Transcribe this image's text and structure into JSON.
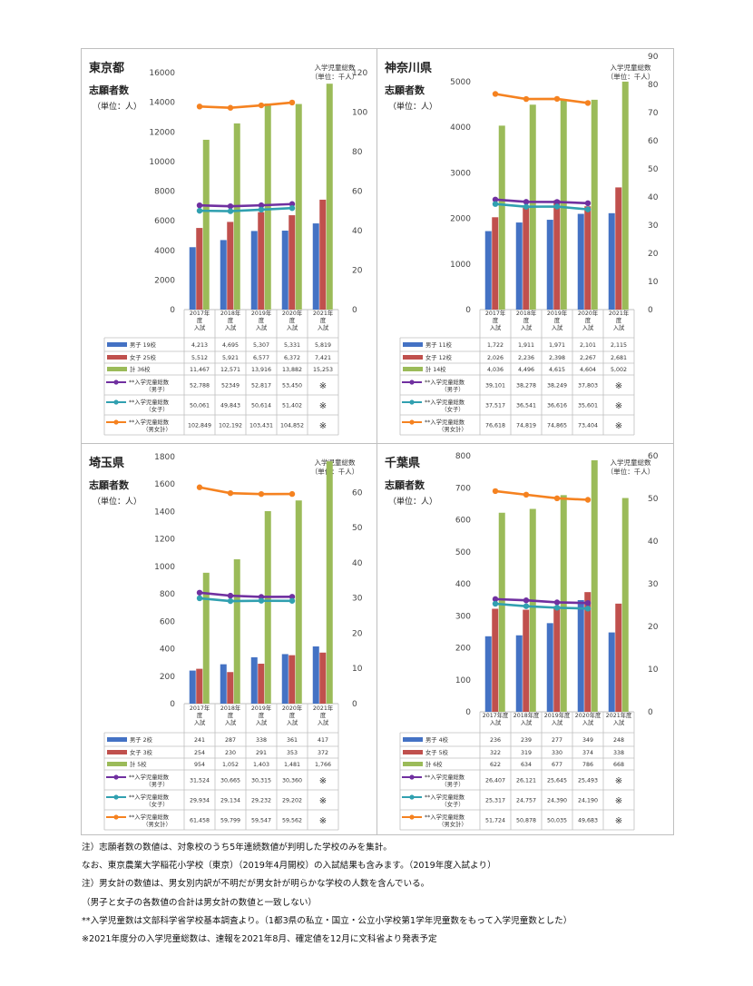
{
  "charts": [
    {
      "id": "tokyo",
      "title": "東京都",
      "subtitle": "志願者数",
      "unit": "（単位：人）",
      "right_title": "入学児童総数",
      "right_unit": "（単位：千人）",
      "left_ticks": [
        "16000",
        "14000",
        "12000",
        "10000",
        "8000",
        "6000",
        "4000",
        "2000",
        "0"
      ],
      "right_ticks": [
        "120",
        "100",
        "80",
        "60",
        "40",
        "20",
        "0"
      ],
      "categories": [
        [
          "2017年",
          "度",
          "入試"
        ],
        [
          "2018年",
          "度",
          "入試"
        ],
        [
          "2019年",
          "度",
          "入試"
        ],
        [
          "2020年",
          "度",
          "入試"
        ],
        [
          "2021年",
          "度",
          "入試"
        ]
      ],
      "table_rows": [
        {
          "label": [
            "男子 19校"
          ],
          "cells": [
            "4,213",
            "4,695",
            "5,307",
            "5,331",
            "5,819"
          ]
        },
        {
          "label": [
            "女子 25校"
          ],
          "cells": [
            "5,512",
            "5,921",
            "6,577",
            "6,372",
            "7,421"
          ]
        },
        {
          "label": [
            "計 36校"
          ],
          "cells": [
            "11,467",
            "12,571",
            "13,916",
            "13,882",
            "15,253"
          ]
        },
        {
          "label": [
            "**入学児童総数",
            "（男子）"
          ],
          "cells": [
            "52,788",
            "52349",
            "52,817",
            "53,450",
            "※"
          ]
        },
        {
          "label": [
            "**入学児童総数",
            "（女子）"
          ],
          "cells": [
            "50,061",
            "49,843",
            "50,614",
            "51,402",
            "※"
          ]
        },
        {
          "label": [
            "**入学児童総数",
            "（男女計）"
          ],
          "cells": [
            "102,849",
            "102,192",
            "103,431",
            "104,852",
            "※"
          ]
        }
      ],
      "chart_data": {
        "type": "bar",
        "categories": [
          "2017年度入試",
          "2018年度入試",
          "2019年度入試",
          "2020年度入試",
          "2021年度入試"
        ],
        "ylim": [
          0,
          16000
        ],
        "y2lim": [
          0,
          120
        ],
        "series": [
          {
            "name": "男子 19校",
            "axis": "left",
            "values": [
              4213,
              4695,
              5307,
              5331,
              5819
            ],
            "color": "#4472c4"
          },
          {
            "name": "女子 25校",
            "axis": "left",
            "values": [
              5512,
              5921,
              6577,
              6372,
              7421
            ],
            "color": "#c0504d"
          },
          {
            "name": "計 36校",
            "axis": "left",
            "values": [
              11467,
              12571,
              13916,
              13882,
              15253
            ],
            "color": "#9bbb59"
          },
          {
            "name": "**入学児童総数（男子）",
            "axis": "right",
            "type": "line",
            "values": [
              52.788,
              52.349,
              52.817,
              53.45,
              null
            ],
            "color": "#7030a0"
          },
          {
            "name": "**入学児童総数（女子）",
            "axis": "right",
            "type": "line",
            "values": [
              50.061,
              49.843,
              50.614,
              51.402,
              null
            ],
            "color": "#31a0b0"
          },
          {
            "name": "**入学児童総数（男女計）",
            "axis": "right",
            "type": "line",
            "values": [
              102.849,
              102.192,
              103.431,
              104.852,
              null
            ],
            "color": "#f58220"
          }
        ]
      }
    },
    {
      "id": "kanagawa",
      "title": "神奈川県",
      "subtitle": "志願者数",
      "unit": "（単位：人）",
      "right_title": "入学児童総数",
      "right_unit": "（単位：千人）",
      "left_ticks": [
        "5000",
        "4000",
        "3000",
        "2000",
        "1000",
        "0"
      ],
      "right_ticks": [
        "90",
        "80",
        "70",
        "60",
        "50",
        "40",
        "30",
        "20",
        "10",
        "0"
      ],
      "categories": [
        [
          "2017年",
          "度",
          "入試"
        ],
        [
          "2018年",
          "度",
          "入試"
        ],
        [
          "2019年",
          "度",
          "入試"
        ],
        [
          "2020年",
          "度",
          "入試"
        ],
        [
          "2021年",
          "度",
          "入試"
        ]
      ],
      "table_rows": [
        {
          "label": [
            "男子 11校"
          ],
          "cells": [
            "1,722",
            "1,911",
            "1,971",
            "2,101",
            "2,115"
          ]
        },
        {
          "label": [
            "女子 12校"
          ],
          "cells": [
            "2,026",
            "2,236",
            "2,398",
            "2,267",
            "2,681"
          ]
        },
        {
          "label": [
            "計 14校"
          ],
          "cells": [
            "4,036",
            "4,496",
            "4,615",
            "4,604",
            "5,002"
          ]
        },
        {
          "label": [
            "**入学児童総数",
            "（男子）"
          ],
          "cells": [
            "39,101",
            "38,278",
            "38,249",
            "37,803",
            "※"
          ]
        },
        {
          "label": [
            "**入学児童総数",
            "（女子）"
          ],
          "cells": [
            "37,517",
            "36,541",
            "36,616",
            "35,601",
            "※"
          ]
        },
        {
          "label": [
            "**入学児童総数",
            "（男女計）"
          ],
          "cells": [
            "76,618",
            "74,819",
            "74,865",
            "73,404",
            "※"
          ]
        }
      ],
      "chart_data": {
        "type": "bar",
        "categories": [
          "2017年度入試",
          "2018年度入試",
          "2019年度入試",
          "2020年度入試",
          "2021年度入試"
        ],
        "ylim": [
          0,
          5000
        ],
        "y2lim": [
          0,
          90
        ],
        "series": [
          {
            "name": "男子 11校",
            "axis": "left",
            "values": [
              1722,
              1911,
              1971,
              2101,
              2115
            ],
            "color": "#4472c4"
          },
          {
            "name": "女子 12校",
            "axis": "left",
            "values": [
              2026,
              2236,
              2398,
              2267,
              2681
            ],
            "color": "#c0504d"
          },
          {
            "name": "計 14校",
            "axis": "left",
            "values": [
              4036,
              4496,
              4615,
              4604,
              5002
            ],
            "color": "#9bbb59"
          },
          {
            "name": "**入学児童総数（男子）",
            "axis": "right",
            "type": "line",
            "values": [
              39.101,
              38.278,
              38.249,
              37.803,
              null
            ],
            "color": "#7030a0"
          },
          {
            "name": "**入学児童総数（女子）",
            "axis": "right",
            "type": "line",
            "values": [
              37.517,
              36.541,
              36.616,
              35.601,
              null
            ],
            "color": "#31a0b0"
          },
          {
            "name": "**入学児童総数（男女計）",
            "axis": "right",
            "type": "line",
            "values": [
              76.618,
              74.819,
              74.865,
              73.404,
              null
            ],
            "color": "#f58220"
          }
        ]
      }
    },
    {
      "id": "saitama",
      "title": "埼玉県",
      "subtitle": "志願者数",
      "unit": "（単位：人）",
      "right_title": "入学児童総数",
      "right_unit": "（単位：千人）",
      "left_ticks": [
        "1800",
        "1600",
        "1400",
        "1200",
        "1000",
        "800",
        "600",
        "400",
        "200",
        "0"
      ],
      "right_ticks": [
        "60",
        "50",
        "40",
        "30",
        "20",
        "10",
        "0"
      ],
      "categories": [
        [
          "2017年",
          "度",
          "入試"
        ],
        [
          "2018年",
          "度",
          "入試"
        ],
        [
          "2019年",
          "度",
          "入試"
        ],
        [
          "2020年",
          "度",
          "入試"
        ],
        [
          "2021年",
          "度",
          "入試"
        ]
      ],
      "table_rows": [
        {
          "label": [
            "男子 2校"
          ],
          "cells": [
            "241",
            "287",
            "338",
            "361",
            "417"
          ]
        },
        {
          "label": [
            "女子 3校"
          ],
          "cells": [
            "254",
            "230",
            "291",
            "353",
            "372"
          ]
        },
        {
          "label": [
            "計 5校"
          ],
          "cells": [
            "954",
            "1,052",
            "1,403",
            "1,481",
            "1,766"
          ]
        },
        {
          "label": [
            "**入学児童総数",
            "（男子）"
          ],
          "cells": [
            "31,524",
            "30,665",
            "30,315",
            "30,360",
            "※"
          ]
        },
        {
          "label": [
            "**入学児童総数",
            "（女子）"
          ],
          "cells": [
            "29,934",
            "29,134",
            "29,232",
            "29,202",
            "※"
          ]
        },
        {
          "label": [
            "**入学児童総数",
            "（男女計）"
          ],
          "cells": [
            "61,458",
            "59,799",
            "59,547",
            "59,562",
            "※"
          ]
        }
      ],
      "chart_data": {
        "type": "bar",
        "categories": [
          "2017年度入試",
          "2018年度入試",
          "2019年度入試",
          "2020年度入試",
          "2021年度入試"
        ],
        "ylim": [
          0,
          1800
        ],
        "y2lim": [
          0,
          65
        ],
        "series": [
          {
            "name": "男子 2校",
            "axis": "left",
            "values": [
              241,
              287,
              338,
              361,
              417
            ],
            "color": "#4472c4"
          },
          {
            "name": "女子 3校",
            "axis": "left",
            "values": [
              254,
              230,
              291,
              353,
              372
            ],
            "color": "#c0504d"
          },
          {
            "name": "計 5校",
            "axis": "left",
            "values": [
              954,
              1052,
              1403,
              1481,
              1766
            ],
            "color": "#9bbb59"
          },
          {
            "name": "**入学児童総数（男子）",
            "axis": "right",
            "type": "line",
            "values": [
              31.524,
              30.665,
              30.315,
              30.36,
              null
            ],
            "color": "#7030a0"
          },
          {
            "name": "**入学児童総数（女子）",
            "axis": "right",
            "type": "line",
            "values": [
              29.934,
              29.134,
              29.232,
              29.202,
              null
            ],
            "color": "#31a0b0"
          },
          {
            "name": "**入学児童総数（男女計）",
            "axis": "right",
            "type": "line",
            "values": [
              61.458,
              59.799,
              59.547,
              59.562,
              null
            ],
            "color": "#f58220"
          }
        ]
      }
    },
    {
      "id": "chiba",
      "title": "千葉県",
      "subtitle": "志願者数",
      "unit": "（単位：人）",
      "right_title": "入学児童総数",
      "right_unit": "（単位：千人）",
      "left_ticks": [
        "800",
        "700",
        "600",
        "500",
        "400",
        "300",
        "200",
        "100",
        "0"
      ],
      "right_ticks": [
        "60",
        "50",
        "40",
        "30",
        "20",
        "10",
        "0"
      ],
      "categories": [
        [
          "2017年度",
          "入試"
        ],
        [
          "2018年度",
          "入試"
        ],
        [
          "2019年度",
          "入試"
        ],
        [
          "2020年度",
          "入試"
        ],
        [
          "2021年度",
          "入試"
        ]
      ],
      "table_rows": [
        {
          "label": [
            "男子 4校"
          ],
          "cells": [
            "236",
            "239",
            "277",
            "349",
            "248"
          ]
        },
        {
          "label": [
            "女子 5校"
          ],
          "cells": [
            "322",
            "319",
            "330",
            "374",
            "338"
          ]
        },
        {
          "label": [
            "計 6校"
          ],
          "cells": [
            "622",
            "634",
            "677",
            "786",
            "668"
          ]
        },
        {
          "label": [
            "**入学児童総数",
            "（男子）"
          ],
          "cells": [
            "26,407",
            "26,121",
            "25,645",
            "25,493",
            "※"
          ]
        },
        {
          "label": [
            "**入学児童総数",
            "（女子）"
          ],
          "cells": [
            "25,317",
            "24,757",
            "24,390",
            "24,190",
            "※"
          ]
        },
        {
          "label": [
            "**入学児童総数",
            "（男女計）"
          ],
          "cells": [
            "51,724",
            "50,878",
            "50,035",
            "49,683",
            "※"
          ]
        }
      ],
      "chart_data": {
        "type": "bar",
        "categories": [
          "2017年度入試",
          "2018年度入試",
          "2019年度入試",
          "2020年度入試",
          "2021年度入試"
        ],
        "ylim": [
          0,
          800
        ],
        "y2lim": [
          0,
          60
        ],
        "series": [
          {
            "name": "男子 4校",
            "axis": "left",
            "values": [
              236,
              239,
              277,
              349,
              248
            ],
            "color": "#4472c4"
          },
          {
            "name": "女子 5校",
            "axis": "left",
            "values": [
              322,
              319,
              330,
              374,
              338
            ],
            "color": "#c0504d"
          },
          {
            "name": "計 6校",
            "axis": "left",
            "values": [
              622,
              634,
              677,
              786,
              668
            ],
            "color": "#9bbb59"
          },
          {
            "name": "**入学児童総数（男子）",
            "axis": "right",
            "type": "line",
            "values": [
              26.407,
              26.121,
              25.645,
              25.493,
              null
            ],
            "color": "#7030a0"
          },
          {
            "name": "**入学児童総数（女子）",
            "axis": "right",
            "type": "line",
            "values": [
              25.317,
              24.757,
              24.39,
              24.19,
              null
            ],
            "color": "#31a0b0"
          },
          {
            "name": "**入学児童総数（男女計）",
            "axis": "right",
            "type": "line",
            "values": [
              51.724,
              50.878,
              50.035,
              49.683,
              null
            ],
            "color": "#f58220"
          }
        ]
      }
    }
  ],
  "notes": [
    "注）志願者数の数値は、対象校のうち5年連続数値が判明した学校のみを集計。",
    "なお、東京農業大学稲花小学校（東京）（2019年4月開校）の入試結果も含みます。（2019年度入試より）",
    "注）男女計の数値は、男女別内訳が不明だが男女計が明らかな学校の人数を含んでいる。",
    "（男子と女子の各数値の合計は男女計の数値と一致しない）",
    "**入学児童数は文部科学省学校基本調査より。（1都3県の私立・国立・公立小学校第1学年児童数をもって入学児童数とした）",
    "※2021年度分の入学児童総数は、速報を2021年8月、確定値を12月に文科省より発表予定"
  ]
}
